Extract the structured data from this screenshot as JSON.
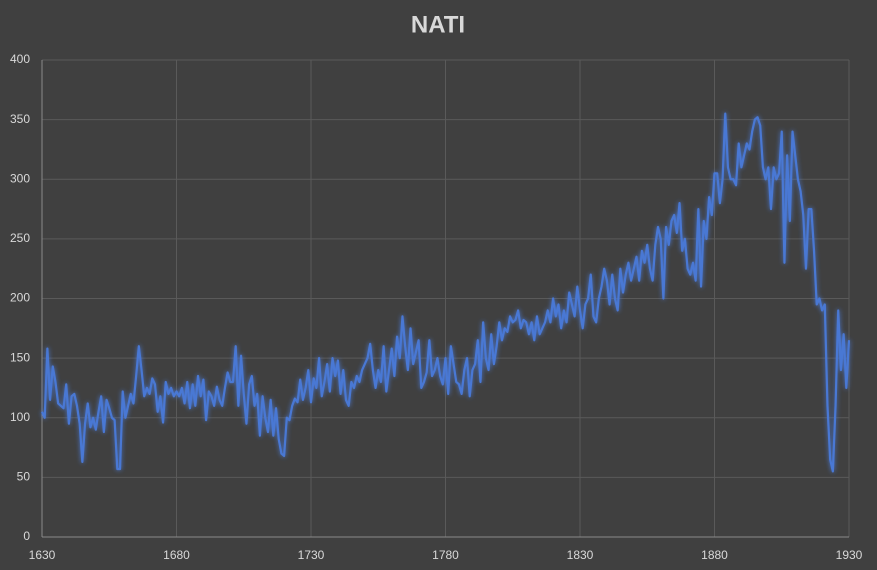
{
  "chart_data": {
    "type": "line",
    "title": "NATI",
    "color": "#4a78d4",
    "grid": true,
    "xlim": [
      1630,
      1930
    ],
    "xticks": [
      1630,
      1680,
      1730,
      1780,
      1830,
      1880,
      1930
    ],
    "ylim": [
      0,
      400
    ],
    "yticks": [
      0,
      50,
      100,
      150,
      200,
      250,
      300,
      350,
      400
    ],
    "x": [
      1630,
      1631,
      1632,
      1633,
      1634,
      1635,
      1636,
      1637,
      1638,
      1639,
      1640,
      1641,
      1642,
      1643,
      1644,
      1645,
      1646,
      1647,
      1648,
      1649,
      1650,
      1651,
      1652,
      1653,
      1654,
      1655,
      1656,
      1657,
      1658,
      1659,
      1660,
      1661,
      1662,
      1663,
      1664,
      1665,
      1666,
      1667,
      1668,
      1669,
      1670,
      1671,
      1672,
      1673,
      1674,
      1675,
      1676,
      1677,
      1678,
      1679,
      1680,
      1681,
      1682,
      1683,
      1684,
      1685,
      1686,
      1687,
      1688,
      1689,
      1690,
      1691,
      1692,
      1693,
      1694,
      1695,
      1696,
      1697,
      1698,
      1699,
      1700,
      1701,
      1702,
      1703,
      1704,
      1705,
      1706,
      1707,
      1708,
      1709,
      1710,
      1711,
      1712,
      1713,
      1714,
      1715,
      1716,
      1717,
      1718,
      1719,
      1720,
      1721,
      1722,
      1723,
      1724,
      1725,
      1726,
      1727,
      1728,
      1729,
      1730,
      1731,
      1732,
      1733,
      1734,
      1735,
      1736,
      1737,
      1738,
      1739,
      1740,
      1741,
      1742,
      1743,
      1744,
      1745,
      1746,
      1747,
      1748,
      1749,
      1750,
      1751,
      1752,
      1753,
      1754,
      1755,
      1756,
      1757,
      1758,
      1759,
      1760,
      1761,
      1762,
      1763,
      1764,
      1765,
      1766,
      1767,
      1768,
      1769,
      1770,
      1771,
      1772,
      1773,
      1774,
      1775,
      1776,
      1777,
      1778,
      1779,
      1780,
      1781,
      1782,
      1783,
      1784,
      1785,
      1786,
      1787,
      1788,
      1789,
      1790,
      1791,
      1792,
      1793,
      1794,
      1795,
      1796,
      1797,
      1798,
      1799,
      1800,
      1801,
      1802,
      1803,
      1804,
      1805,
      1806,
      1807,
      1808,
      1809,
      1810,
      1811,
      1812,
      1813,
      1814,
      1815,
      1816,
      1817,
      1818,
      1819,
      1820,
      1821,
      1822,
      1823,
      1824,
      1825,
      1826,
      1827,
      1828,
      1829,
      1830,
      1831,
      1832,
      1833,
      1834,
      1835,
      1836,
      1837,
      1838,
      1839,
      1840,
      1841,
      1842,
      1843,
      1844,
      1845,
      1846,
      1847,
      1848,
      1849,
      1850,
      1851,
      1852,
      1853,
      1854,
      1855,
      1856,
      1857,
      1858,
      1859,
      1860,
      1861,
      1862,
      1863,
      1864,
      1865,
      1866,
      1867,
      1868,
      1869,
      1870,
      1871,
      1872,
      1873,
      1874,
      1875,
      1876,
      1877,
      1878,
      1879,
      1880,
      1881,
      1882,
      1883,
      1884,
      1885,
      1886,
      1887,
      1888,
      1889,
      1890,
      1891,
      1892,
      1893,
      1894,
      1895,
      1896,
      1897,
      1898,
      1899,
      1900,
      1901,
      1902,
      1903,
      1904,
      1905,
      1906,
      1907,
      1908,
      1909,
      1910,
      1911,
      1912,
      1913,
      1914,
      1915,
      1916,
      1917,
      1918,
      1919,
      1920,
      1921,
      1922,
      1923,
      1924,
      1925,
      1926,
      1927,
      1928,
      1929,
      1930
    ],
    "values": [
      105,
      100,
      158,
      115,
      143,
      130,
      112,
      110,
      108,
      128,
      95,
      118,
      120,
      110,
      95,
      63,
      95,
      112,
      92,
      100,
      90,
      105,
      118,
      88,
      115,
      108,
      100,
      98,
      57,
      57,
      122,
      100,
      110,
      120,
      112,
      135,
      160,
      140,
      118,
      125,
      120,
      133,
      128,
      105,
      118,
      96,
      130,
      120,
      125,
      118,
      122,
      118,
      125,
      112,
      130,
      108,
      128,
      110,
      135,
      118,
      132,
      98,
      122,
      118,
      110,
      126,
      115,
      110,
      125,
      138,
      130,
      130,
      160,
      110,
      152,
      120,
      95,
      128,
      135,
      110,
      120,
      85,
      118,
      100,
      88,
      115,
      85,
      108,
      82,
      70,
      68,
      100,
      98,
      110,
      116,
      113,
      132,
      115,
      125,
      140,
      113,
      133,
      125,
      150,
      118,
      130,
      145,
      122,
      150,
      135,
      148,
      120,
      140,
      115,
      110,
      130,
      125,
      135,
      130,
      140,
      145,
      150,
      162,
      140,
      125,
      140,
      130,
      160,
      122,
      140,
      158,
      135,
      168,
      150,
      185,
      160,
      140,
      175,
      145,
      155,
      165,
      125,
      130,
      138,
      165,
      135,
      140,
      150,
      135,
      128,
      150,
      120,
      160,
      145,
      130,
      128,
      120,
      140,
      150,
      118,
      140,
      145,
      165,
      130,
      180,
      150,
      140,
      170,
      145,
      160,
      180,
      165,
      175,
      172,
      185,
      180,
      182,
      190,
      175,
      182,
      180,
      170,
      180,
      165,
      185,
      170,
      175,
      180,
      190,
      180,
      200,
      185,
      195,
      175,
      190,
      180,
      205,
      195,
      185,
      210,
      190,
      175,
      195,
      200,
      220,
      185,
      180,
      200,
      210,
      225,
      215,
      195,
      220,
      200,
      190,
      225,
      205,
      220,
      230,
      215,
      225,
      235,
      215,
      240,
      230,
      245,
      225,
      215,
      245,
      260,
      250,
      200,
      260,
      245,
      265,
      270,
      255,
      280,
      240,
      250,
      225,
      220,
      230,
      215,
      275,
      210,
      265,
      250,
      285,
      270,
      305,
      305,
      280,
      300,
      355,
      310,
      300,
      300,
      295,
      330,
      310,
      320,
      330,
      325,
      340,
      350,
      352,
      345,
      310,
      300,
      310,
      275,
      310,
      300,
      305,
      340,
      230,
      320,
      265,
      340,
      320,
      300,
      290,
      270,
      225,
      275,
      275,
      240,
      195,
      200,
      190,
      195,
      110,
      65,
      55,
      110,
      190,
      140,
      170,
      125,
      165
    ]
  }
}
